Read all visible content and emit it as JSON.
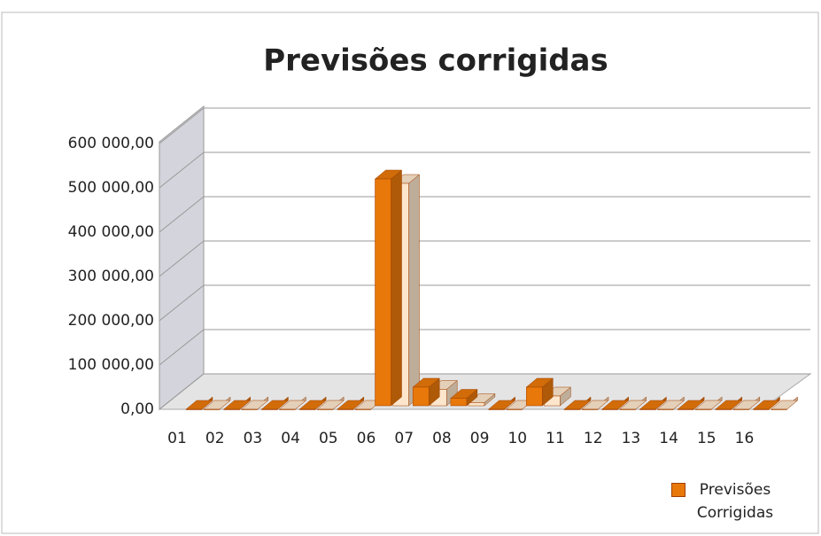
{
  "chart_data": {
    "type": "bar3d",
    "title": "Previsões corrigidas",
    "categories": [
      "01",
      "02",
      "03",
      "04",
      "05",
      "06",
      "07",
      "08",
      "09",
      "10",
      "11",
      "12",
      "13",
      "14",
      "15",
      "16"
    ],
    "series": [
      {
        "name": "Previsões Corrigidas",
        "color": "#e8780a",
        "values": [
          0,
          0,
          0,
          0,
          0,
          520000,
          50000,
          25000,
          0,
          50000,
          0,
          0,
          0,
          0,
          0,
          0
        ]
      },
      {
        "color": "#fde6cc",
        "values": [
          0,
          0,
          0,
          0,
          0,
          510000,
          45000,
          15000,
          0,
          30000,
          0,
          0,
          0,
          0,
          0,
          0
        ]
      }
    ],
    "ylim": [
      0,
      600000
    ],
    "yticks": [
      {
        "value": 0,
        "label": "0,00"
      },
      {
        "value": 100000,
        "label": "100 000,00"
      },
      {
        "value": 200000,
        "label": "200 000,00"
      },
      {
        "value": 300000,
        "label": "300 000,00"
      },
      {
        "value": 400000,
        "label": "400 000,00"
      },
      {
        "value": 500000,
        "label": "500 000,00"
      },
      {
        "value": 600000,
        "label": "600 000,00"
      }
    ],
    "grid": true
  }
}
